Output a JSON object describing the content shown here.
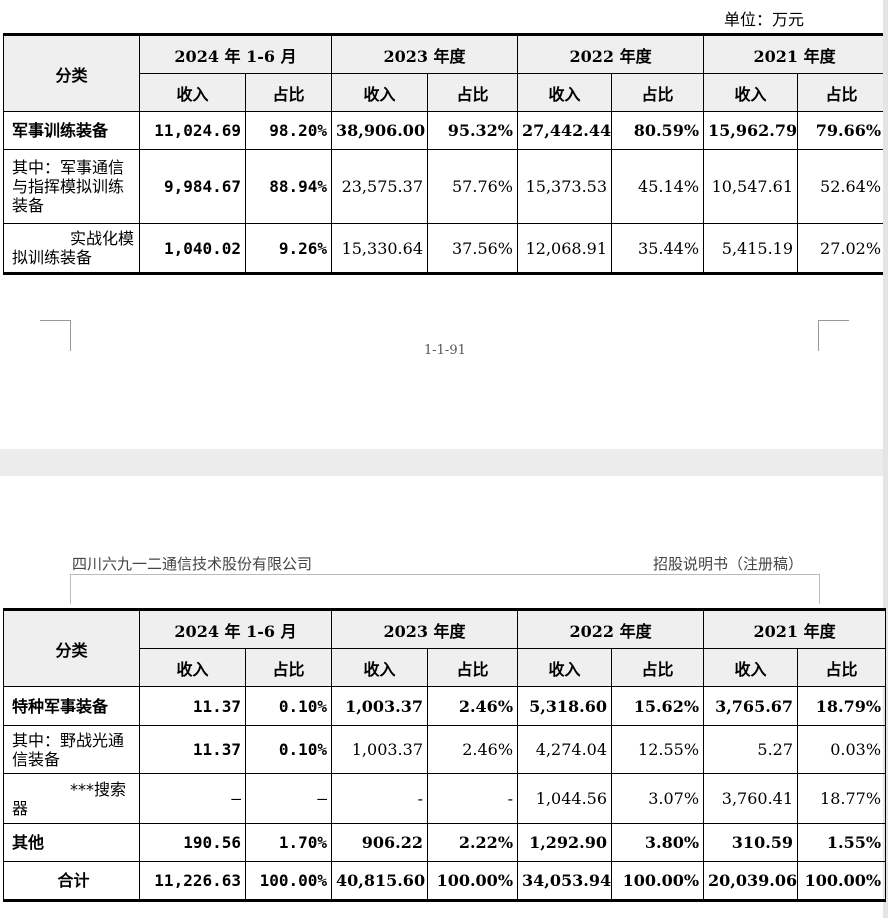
{
  "unit_label": "单位：万元",
  "page_number": "1-1-91",
  "header": {
    "company": "四川六九一二通信技术股份有限公司",
    "doc": "招股说明书（注册稿）"
  },
  "table_headers": {
    "category": "分类",
    "periods": [
      "2024 年 1-6 月",
      "2023 年度",
      "2022 年度",
      "2021 年度"
    ],
    "revenue": "收入",
    "share": "占比"
  },
  "table_top": [
    {
      "label": "军事训练装备",
      "values": [
        "11,024.69",
        "98.20%",
        "38,906.00",
        "95.32%",
        "27,442.44",
        "80.59%",
        "15,962.79",
        "79.66%"
      ]
    },
    {
      "label": "其中：军事通信与指挥模拟训练装备",
      "values": [
        "9,984.67",
        "88.94%",
        "23,575.37",
        "57.76%",
        "15,373.53",
        "45.14%",
        "10,547.61",
        "52.64%"
      ]
    },
    {
      "label": "实战化模拟训练装备",
      "values": [
        "1,040.02",
        "9.26%",
        "15,330.64",
        "37.56%",
        "12,068.91",
        "35.44%",
        "5,415.19",
        "27.02%"
      ]
    }
  ],
  "table_bottom": [
    {
      "label": "特种军事装备",
      "values": [
        "11.37",
        "0.10%",
        "1,003.37",
        "2.46%",
        "5,318.60",
        "15.62%",
        "3,765.67",
        "18.79%"
      ]
    },
    {
      "label": "其中：野战光通信装备",
      "values": [
        "11.37",
        "0.10%",
        "1,003.37",
        "2.46%",
        "4,274.04",
        "12.55%",
        "5.27",
        "0.03%"
      ]
    },
    {
      "label": "***搜索器",
      "values": [
        "–",
        "–",
        "-",
        "-",
        "1,044.56",
        "3.07%",
        "3,760.41",
        "18.77%"
      ]
    },
    {
      "label": "其他",
      "values": [
        "190.56",
        "1.70%",
        "906.22",
        "2.22%",
        "1,292.90",
        "3.80%",
        "310.59",
        "1.55%"
      ]
    },
    {
      "label": "合计",
      "values": [
        "11,226.63",
        "100.00%",
        "40,815.60",
        "100.00%",
        "34,053.94",
        "100.00%",
        "20,039.06",
        "100.00%"
      ]
    }
  ]
}
